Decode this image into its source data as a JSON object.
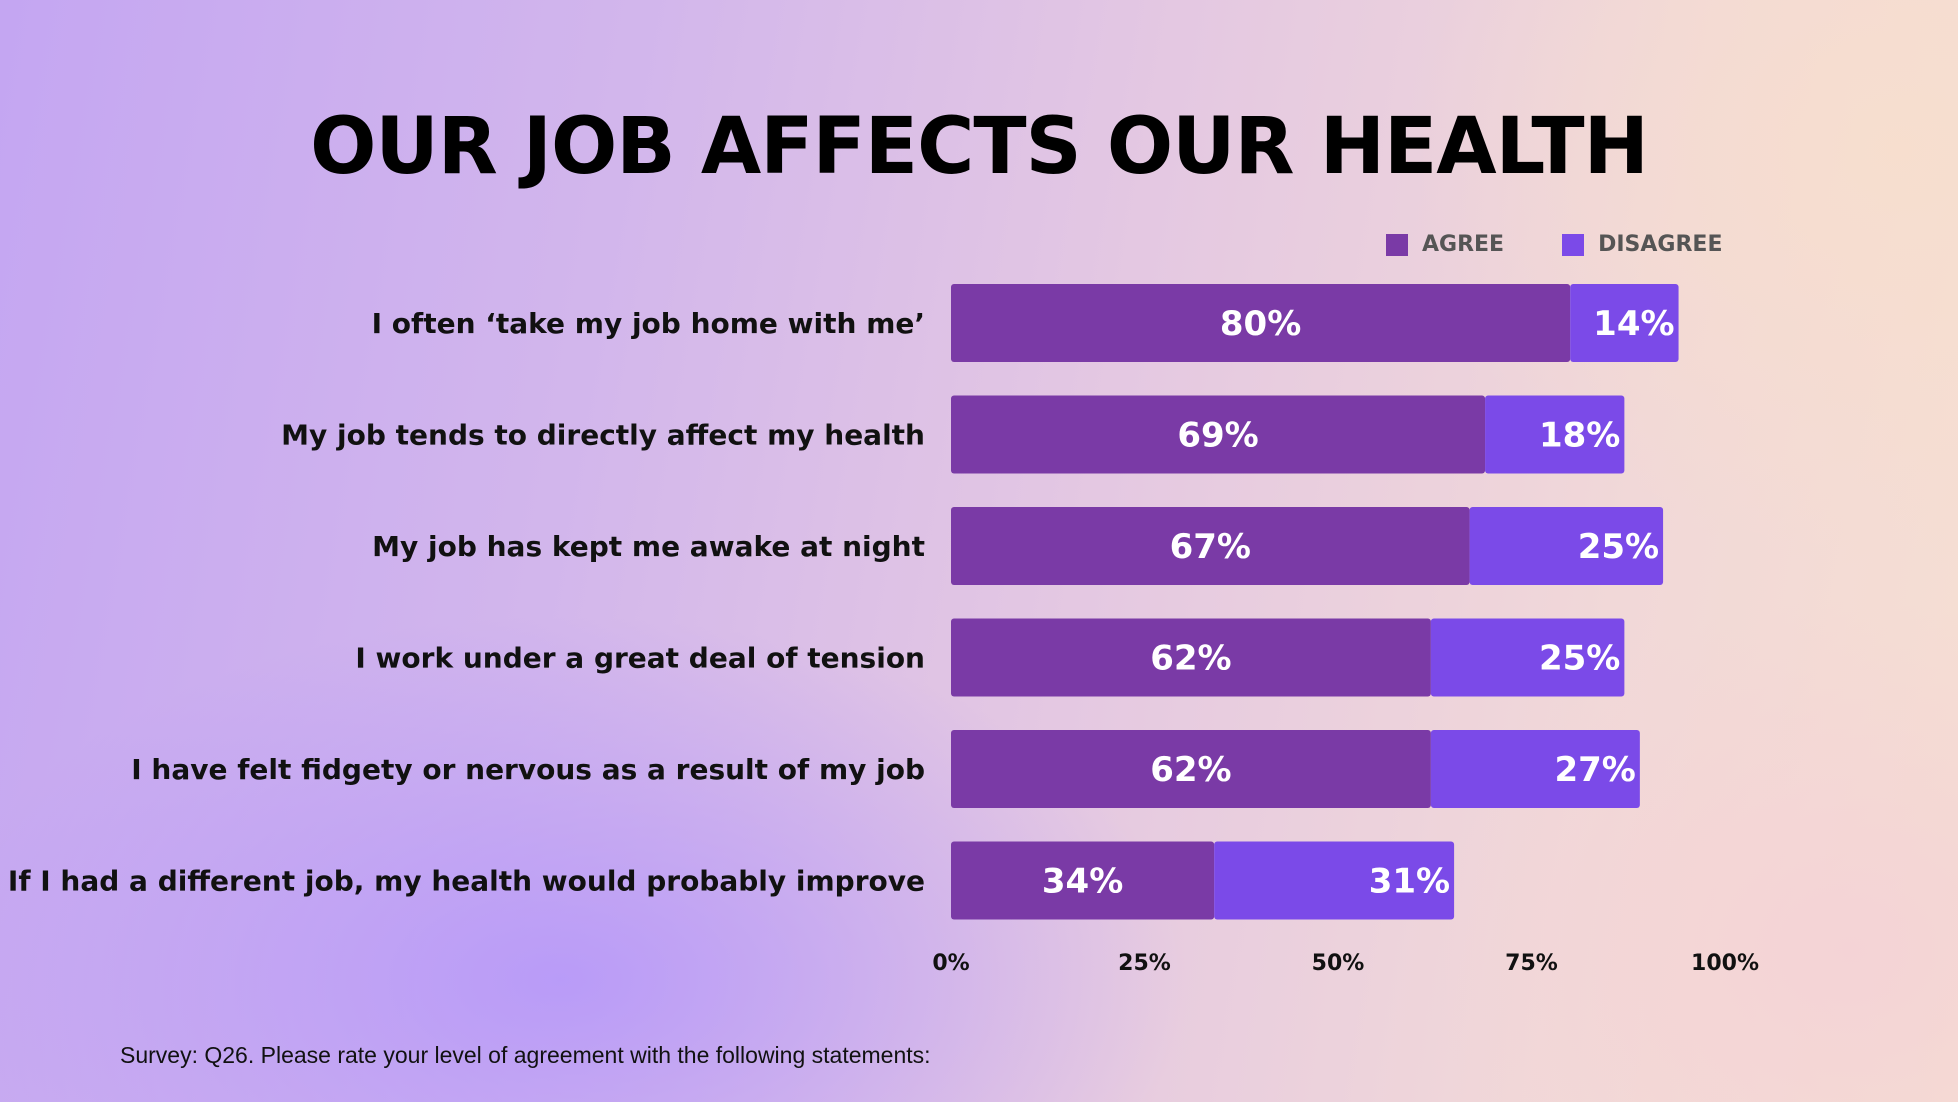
{
  "title": "OUR JOB AFFECTS OUR HEALTH",
  "footnote": "Survey: Q26. Please rate your level of agreement with the following statements:",
  "colors": {
    "agree": "#7a3aa6",
    "disagree": "#7b4ae8"
  },
  "chart_data": {
    "type": "bar",
    "orientation": "horizontal",
    "stacked": true,
    "title": "OUR JOB AFFECTS OUR HEALTH",
    "categories": [
      "I often ‘take my job home with me’",
      "My job tends to directly affect my health",
      "My job has kept me awake at night",
      "I work under a great deal of tension",
      "I have felt fidgety or nervous as a result of my job",
      "If I had a different job, my health would probably improve"
    ],
    "series": [
      {
        "name": "AGREE",
        "values": [
          80,
          69,
          67,
          62,
          62,
          34
        ]
      },
      {
        "name": "DISAGREE",
        "values": [
          14,
          18,
          25,
          25,
          27,
          31
        ]
      }
    ],
    "value_labels": {
      "AGREE": [
        "80%",
        "69%",
        "67%",
        "62%",
        "62%",
        "34%"
      ],
      "DISAGREE": [
        "14%",
        "18%",
        "25%",
        "25%",
        "27%",
        "31%"
      ]
    },
    "xlim": [
      0,
      100
    ],
    "xticks": [
      0,
      25,
      50,
      75,
      100
    ],
    "xtick_labels": [
      "0%",
      "25%",
      "50%",
      "75%",
      "100%"
    ],
    "grid": false,
    "legend_position": "top-right"
  }
}
